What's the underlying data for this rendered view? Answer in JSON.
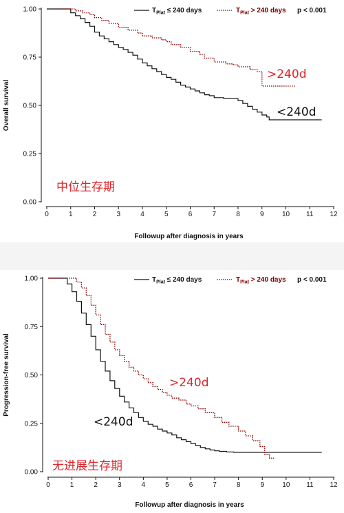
{
  "chart_data": [
    {
      "type": "line",
      "chart_kind": "kaplan-meier",
      "xlabel": "Followup after diagnosis in years",
      "ylabel": "Overall survival",
      "xlim": [
        0,
        12
      ],
      "ylim": [
        0,
        1
      ],
      "x_ticks": [
        "0",
        "1",
        "2",
        "3",
        "4",
        "5",
        "6",
        "7",
        "8",
        "9",
        "10",
        "11",
        "12"
      ],
      "y_ticks": [
        "0.00",
        "0.25",
        "0.50",
        "0.75",
        "1.00"
      ],
      "legend": {
        "placement": "top",
        "entries": [
          {
            "label_main": "T",
            "label_sub": "Plat",
            "label_rest": " ≤ 240 days",
            "style": "solid",
            "color": "#111111"
          },
          {
            "label_main": "T",
            "label_sub": "Plat",
            "label_rest": " > 240 days",
            "style": "dotted",
            "color": "#8b0000"
          }
        ],
        "pvalue": "p < 0.001"
      },
      "annotations": [
        {
          "text": ">240d",
          "color": "#e0242a"
        },
        {
          "text": "<240d",
          "color": "#111111"
        },
        {
          "text": "中位生存期",
          "color": "#e0242a"
        }
      ],
      "series": [
        {
          "name": "T Plat ≤ 240 days",
          "style": "solid",
          "color": "#111111",
          "x": [
            0,
            0.8,
            1.0,
            1.2,
            1.4,
            1.6,
            1.8,
            2.0,
            2.2,
            2.4,
            2.6,
            2.8,
            3.0,
            3.2,
            3.4,
            3.6,
            3.8,
            4.0,
            4.2,
            4.4,
            4.6,
            4.8,
            5.0,
            5.2,
            5.4,
            5.6,
            5.8,
            6.0,
            6.2,
            6.4,
            6.6,
            6.8,
            7.0,
            7.4,
            7.8,
            8.0,
            8.2,
            8.4,
            8.6,
            8.8,
            9.0,
            9.2,
            9.3,
            9.6,
            10.0,
            10.5,
            11.0,
            11.5
          ],
          "y": [
            1.0,
            1.0,
            0.98,
            0.965,
            0.95,
            0.93,
            0.91,
            0.88,
            0.86,
            0.845,
            0.83,
            0.815,
            0.8,
            0.79,
            0.775,
            0.76,
            0.74,
            0.72,
            0.705,
            0.69,
            0.675,
            0.66,
            0.645,
            0.635,
            0.62,
            0.605,
            0.595,
            0.585,
            0.575,
            0.565,
            0.555,
            0.55,
            0.54,
            0.535,
            0.535,
            0.525,
            0.51,
            0.495,
            0.48,
            0.465,
            0.45,
            0.44,
            0.425,
            0.425,
            0.425,
            0.425,
            0.425,
            0.425
          ]
        },
        {
          "name": "T Plat > 240 days",
          "style": "dotted",
          "color": "#8b0000",
          "x": [
            0,
            1.0,
            1.2,
            1.5,
            1.8,
            2.0,
            2.3,
            2.6,
            3.0,
            3.4,
            3.8,
            4.0,
            4.4,
            4.8,
            5.0,
            5.2,
            5.6,
            6.0,
            6.4,
            6.6,
            7.0,
            7.5,
            7.8,
            8.0,
            8.5,
            8.8,
            9.0,
            9.3,
            9.8,
            10.0,
            10.4
          ],
          "y": [
            1.0,
            1.0,
            0.99,
            0.98,
            0.97,
            0.955,
            0.94,
            0.925,
            0.905,
            0.89,
            0.875,
            0.86,
            0.85,
            0.84,
            0.83,
            0.815,
            0.8,
            0.78,
            0.765,
            0.745,
            0.725,
            0.715,
            0.71,
            0.7,
            0.685,
            0.675,
            0.6,
            0.6,
            0.6,
            0.6,
            0.6
          ]
        }
      ]
    },
    {
      "type": "line",
      "chart_kind": "kaplan-meier",
      "xlabel": "Followup after diagnosis in years",
      "ylabel": "Progression-free survival",
      "xlim": [
        0,
        12
      ],
      "ylim": [
        0,
        1
      ],
      "x_ticks": [
        "0",
        "1",
        "2",
        "3",
        "4",
        "5",
        "6",
        "7",
        "8",
        "9",
        "10",
        "11",
        "12"
      ],
      "y_ticks": [
        "0.00",
        "0.25",
        "0.50",
        "0.75",
        "1.00"
      ],
      "legend": {
        "placement": "top",
        "entries": [
          {
            "label_main": "T",
            "label_sub": "Plat",
            "label_rest": " ≤ 240 days",
            "style": "solid",
            "color": "#111111"
          },
          {
            "label_main": "T",
            "label_sub": "Plat",
            "label_rest": " > 240 days",
            "style": "dotted",
            "color": "#8b0000"
          }
        ],
        "pvalue": "p < 0.001"
      },
      "annotations": [
        {
          "text": ">240d",
          "color": "#e0242a"
        },
        {
          "text": "<240d",
          "color": "#111111"
        },
        {
          "text": "无进展生存期",
          "color": "#e0242a"
        }
      ],
      "series": [
        {
          "name": "T Plat ≤ 240 days",
          "style": "solid",
          "color": "#111111",
          "x": [
            0,
            0.6,
            0.8,
            1.0,
            1.2,
            1.4,
            1.6,
            1.8,
            2.0,
            2.2,
            2.4,
            2.6,
            2.8,
            3.0,
            3.2,
            3.4,
            3.6,
            3.8,
            4.0,
            4.2,
            4.4,
            4.6,
            4.8,
            5.0,
            5.2,
            5.4,
            5.6,
            5.8,
            6.0,
            6.2,
            6.4,
            6.6,
            6.8,
            7.0,
            7.2,
            7.5,
            7.8,
            8.0,
            8.5,
            9.0,
            9.5,
            10.0,
            10.5,
            11.0,
            11.5
          ],
          "y": [
            1.0,
            1.0,
            0.97,
            0.93,
            0.88,
            0.82,
            0.76,
            0.7,
            0.63,
            0.57,
            0.52,
            0.47,
            0.43,
            0.39,
            0.36,
            0.33,
            0.305,
            0.28,
            0.26,
            0.245,
            0.235,
            0.22,
            0.21,
            0.2,
            0.19,
            0.175,
            0.165,
            0.155,
            0.145,
            0.135,
            0.125,
            0.118,
            0.112,
            0.108,
            0.105,
            0.102,
            0.1,
            0.1,
            0.1,
            0.1,
            0.1,
            0.1,
            0.1,
            0.1,
            0.1
          ]
        },
        {
          "name": "T Plat > 240 days",
          "style": "dotted",
          "color": "#8b0000",
          "x": [
            0,
            1.0,
            1.2,
            1.4,
            1.6,
            1.8,
            2.0,
            2.2,
            2.4,
            2.6,
            2.8,
            3.0,
            3.2,
            3.4,
            3.6,
            3.8,
            4.0,
            4.2,
            4.4,
            4.6,
            4.8,
            5.0,
            5.2,
            5.5,
            5.8,
            6.0,
            6.3,
            6.6,
            7.0,
            7.3,
            7.6,
            8.0,
            8.3,
            8.6,
            8.9,
            9.1,
            9.3,
            9.5
          ],
          "y": [
            1.0,
            1.0,
            0.98,
            0.95,
            0.91,
            0.86,
            0.81,
            0.76,
            0.71,
            0.67,
            0.63,
            0.6,
            0.57,
            0.54,
            0.52,
            0.5,
            0.48,
            0.46,
            0.44,
            0.425,
            0.41,
            0.395,
            0.38,
            0.37,
            0.35,
            0.34,
            0.325,
            0.305,
            0.28,
            0.255,
            0.235,
            0.21,
            0.185,
            0.16,
            0.13,
            0.09,
            0.07,
            0.07
          ]
        }
      ]
    }
  ]
}
